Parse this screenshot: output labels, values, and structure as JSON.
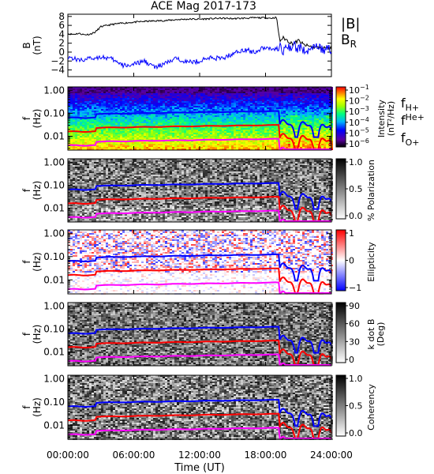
{
  "chart_data": {
    "title": "ACE Mag 2017-173",
    "type": "line",
    "time_axis": {
      "label": "Time (UT)",
      "range_hours": [
        0,
        24
      ],
      "ticks": [
        {
          "hours": 0,
          "label": "00:00:00"
        },
        {
          "hours": 6,
          "label": "06:00:00"
        },
        {
          "hours": 12,
          "label": "12:00:00"
        },
        {
          "hours": 18,
          "label": "18:00:00"
        },
        {
          "hours": 24,
          "label": "24:00:00"
        }
      ]
    },
    "field_panel": {
      "ylabel": [
        "B",
        "(nT)"
      ],
      "ylim": [
        -5.5,
        8.5
      ],
      "yticks": [
        {
          "v": -4,
          "label": "−4"
        },
        {
          "v": -2,
          "label": "−2"
        },
        {
          "v": 0,
          "label": "0"
        },
        {
          "v": 2,
          "label": "2"
        },
        {
          "v": 4,
          "label": "4"
        },
        {
          "v": 6,
          "label": "6"
        },
        {
          "v": 8,
          "label": "8"
        }
      ],
      "series": [
        {
          "name": "|B|",
          "color": "#000000",
          "x": [
            0,
            0.5,
            1,
            1.5,
            2,
            2.5,
            3,
            4,
            5,
            6,
            7,
            8,
            9,
            10,
            11,
            12,
            13,
            14,
            15,
            16,
            17,
            18,
            18.5,
            19,
            19.3,
            19.6,
            20,
            20.5,
            21,
            21.5,
            22,
            22.5,
            23,
            23.5,
            24
          ],
          "y": [
            4.1,
            4.0,
            4.2,
            3.9,
            4.0,
            4.5,
            5.7,
            6.2,
            6.5,
            6.7,
            6.9,
            7.0,
            7.1,
            7.3,
            7.4,
            7.4,
            7.5,
            7.6,
            7.5,
            7.6,
            7.7,
            7.7,
            7.6,
            7.8,
            2.5,
            3.2,
            2.6,
            1.8,
            2.6,
            1.6,
            1.3,
            1.1,
            0.9,
            1.0,
            0.8
          ]
        },
        {
          "name": "B_R",
          "color": "#0000ff",
          "x": [
            0,
            1,
            2,
            3,
            4,
            5,
            6,
            7,
            8,
            9,
            10,
            11,
            12,
            13,
            14,
            15,
            16,
            17,
            18,
            18.5,
            19,
            19.3,
            19.6,
            20,
            20.5,
            21,
            21.5,
            22,
            22.5,
            23,
            23.5,
            24
          ],
          "y": [
            -1.0,
            -1.8,
            -1.5,
            -1.0,
            -1.6,
            -3.0,
            -2.8,
            -2.0,
            -3.5,
            -2.4,
            -1.4,
            -2.3,
            -2.0,
            -1.2,
            -1.5,
            -0.4,
            0.6,
            0.0,
            1.2,
            0.8,
            0.6,
            0.9,
            0.4,
            0.7,
            1.2,
            1.0,
            0.4,
            0.6,
            1.0,
            0.8,
            0.5,
            0.2
          ]
        }
      ],
      "legend": [
        {
          "text": "|B|",
          "color": "#000000"
        },
        {
          "text": "B",
          "sub": "R",
          "color": "#0000ff"
        }
      ]
    },
    "freq_axis": {
      "ylabel": [
        "f",
        "(Hz)"
      ],
      "scale": "log",
      "range_hz": [
        0.0025,
        1.4
      ],
      "ticks": [
        {
          "v": 1.0,
          "label": "1.00"
        },
        {
          "v": 0.1,
          "label": "0.10"
        },
        {
          "v": 0.01,
          "label": "0.01"
        }
      ]
    },
    "gyrofrequency_lines": [
      {
        "name": "H+",
        "color": "#0000ff"
      },
      {
        "name": "He+",
        "color": "#ff0000"
      },
      {
        "name": "O+",
        "color": "#ff00ff"
      }
    ],
    "gyro_legend": [
      {
        "base": "f",
        "sub": "H+",
        "color": "#0000ff"
      },
      {
        "base": "f",
        "sup": "He+",
        "color": "#ff0000"
      },
      {
        "base": "f",
        "sub": "O+",
        "color": "#ff00ff"
      }
    ],
    "spectrogram_panels": [
      {
        "id": "intensity",
        "colorbar_type": "rainbow",
        "colorbar_title": [
          "Intensity",
          "(nT²/Hz)"
        ],
        "log_labels": true,
        "colorbar_ticks": [
          {
            "base": "10",
            "exp": "−1"
          },
          {
            "base": "10",
            "exp": "−2"
          },
          {
            "base": "10",
            "exp": "−3"
          },
          {
            "base": "10",
            "exp": "−4"
          },
          {
            "base": "10",
            "exp": "−5"
          },
          {
            "base": "10",
            "exp": "−6"
          }
        ]
      },
      {
        "id": "polarization",
        "colorbar_type": "gray",
        "colorbar_title": [
          "% Polarization"
        ],
        "log_labels": false,
        "colorbar_ticks": [
          {
            "text": "1.0"
          },
          {
            "text": "0.5"
          },
          {
            "text": "0.0"
          }
        ]
      },
      {
        "id": "ellipticity",
        "colorbar_type": "bwr",
        "colorbar_title": [
          "Ellipticity"
        ],
        "log_labels": false,
        "colorbar_ticks": [
          {
            "text": "1"
          },
          {
            "text": "0"
          },
          {
            "text": "−1"
          }
        ]
      },
      {
        "id": "kdotb",
        "colorbar_type": "gray",
        "colorbar_title": [
          "k dot B",
          "(Deg)"
        ],
        "log_labels": false,
        "colorbar_ticks": [
          {
            "text": "90"
          },
          {
            "text": "60"
          },
          {
            "text": "30"
          },
          {
            "text": "0"
          }
        ]
      },
      {
        "id": "coherency",
        "colorbar_type": "gray",
        "colorbar_title": [
          "Coherency"
        ],
        "log_labels": false,
        "colorbar_ticks": [
          {
            "text": "1.0"
          },
          {
            "text": "0.5"
          },
          {
            "text": "0.0"
          }
        ]
      }
    ],
    "grid": false
  }
}
